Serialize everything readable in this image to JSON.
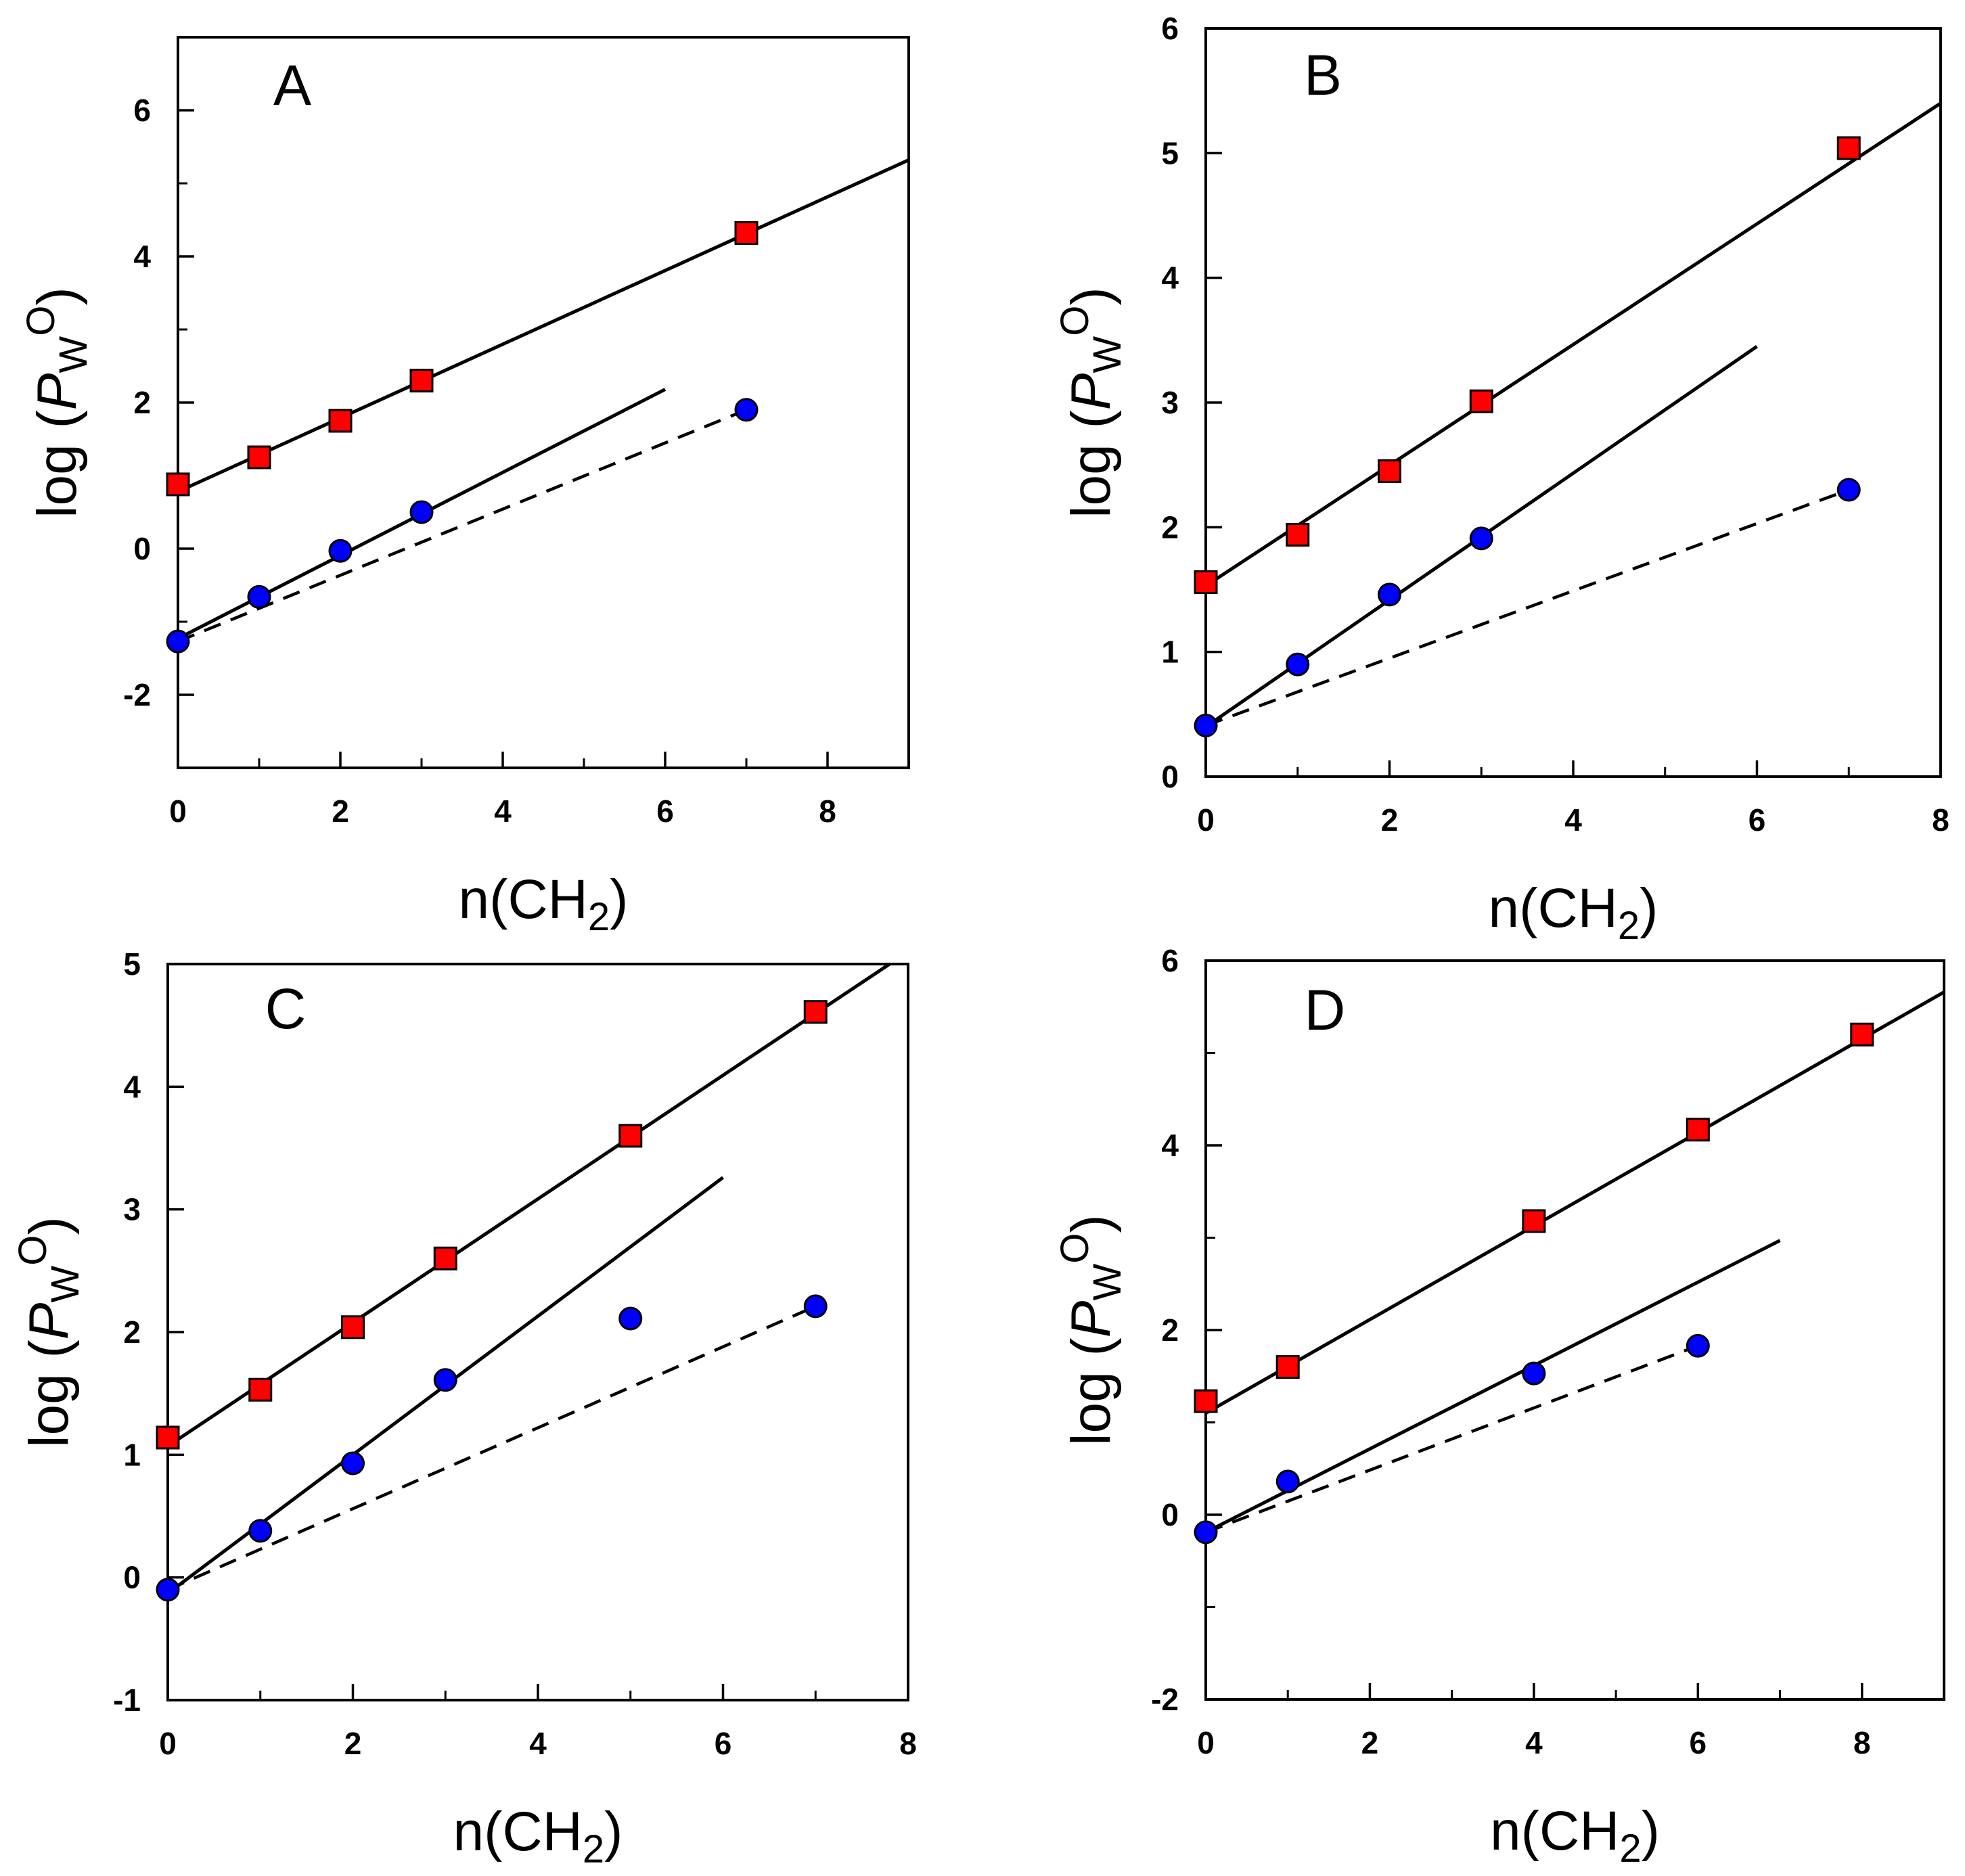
{
  "figure": {
    "xlabel_main": "n(CH",
    "xlabel_sub": "2",
    "xlabel_close": ")",
    "ylabel_prefix": "log (",
    "ylabel_var": "P",
    "ylabel_sub": "W",
    "ylabel_sup": "O",
    "ylabel_close": ")"
  },
  "chart_data": [
    {
      "type": "scatter",
      "panel": "A",
      "title": "A",
      "xlabel": "n(CH2)",
      "ylabel": "log (PWO)",
      "xlim": [
        0,
        9
      ],
      "ylim": [
        -3,
        7
      ],
      "x_major_ticks": [
        0,
        2,
        4,
        6,
        8
      ],
      "x_minor_ticks": [
        1,
        3,
        5,
        7
      ],
      "y_major_ticks": [
        -2,
        0,
        2,
        4,
        6
      ],
      "y_minor_ticks": [
        -1,
        1,
        3,
        5
      ],
      "series": [
        {
          "name": "squares",
          "marker": "square",
          "color": "#ff0000",
          "points": [
            [
              0,
              0.88
            ],
            [
              1,
              1.25
            ],
            [
              2,
              1.75
            ],
            [
              3,
              2.3
            ],
            [
              7,
              4.32
            ]
          ]
        },
        {
          "name": "circles",
          "marker": "circle",
          "color": "#0000ff",
          "points": [
            [
              0,
              -1.27
            ],
            [
              1,
              -0.66
            ],
            [
              2,
              -0.03
            ],
            [
              3,
              0.5
            ],
            [
              7,
              1.9
            ]
          ]
        }
      ],
      "lines": [
        {
          "style": "solid",
          "from": [
            0,
            0.78
          ],
          "to": [
            9,
            5.32
          ]
        },
        {
          "style": "solid",
          "from": [
            0,
            -1.23
          ],
          "to": [
            6,
            2.18
          ]
        },
        {
          "style": "dashed",
          "from": [
            0,
            -1.27
          ],
          "to": [
            7,
            1.9
          ]
        }
      ]
    },
    {
      "type": "scatter",
      "panel": "B",
      "title": "B",
      "xlabel": "n(CH2)",
      "ylabel": "log (PWO)",
      "xlim": [
        0,
        8
      ],
      "ylim": [
        0,
        6
      ],
      "x_major_ticks": [
        0,
        2,
        4,
        6,
        8
      ],
      "x_minor_ticks": [
        1,
        3,
        5,
        7
      ],
      "y_major_ticks": [
        0,
        1,
        2,
        3,
        4,
        5,
        6
      ],
      "y_minor_ticks": [],
      "series": [
        {
          "name": "squares",
          "marker": "square",
          "color": "#ff0000",
          "points": [
            [
              0,
              1.56
            ],
            [
              1,
              1.94
            ],
            [
              2,
              2.45
            ],
            [
              3,
              3.01
            ],
            [
              7,
              5.04
            ]
          ]
        },
        {
          "name": "circles",
          "marker": "circle",
          "color": "#0000ff",
          "points": [
            [
              0,
              0.41
            ],
            [
              1,
              0.9
            ],
            [
              2,
              1.46
            ],
            [
              3,
              1.91
            ],
            [
              7,
              2.3
            ]
          ]
        }
      ],
      "lines": [
        {
          "style": "solid",
          "from": [
            0,
            1.53
          ],
          "to": [
            8,
            5.4
          ]
        },
        {
          "style": "solid",
          "from": [
            0,
            0.4
          ],
          "to": [
            6,
            3.45
          ]
        },
        {
          "style": "dashed",
          "from": [
            0,
            0.41
          ],
          "to": [
            7,
            2.3
          ]
        }
      ]
    },
    {
      "type": "scatter",
      "panel": "C",
      "title": "C",
      "xlabel": "n(CH2)",
      "ylabel": "log (PWO)",
      "xlim": [
        0,
        8
      ],
      "ylim": [
        -1,
        5
      ],
      "x_major_ticks": [
        0,
        2,
        4,
        6,
        8
      ],
      "x_minor_ticks": [
        1,
        3,
        5,
        7
      ],
      "y_major_ticks": [
        -1,
        0,
        1,
        2,
        3,
        4,
        5
      ],
      "y_minor_ticks": [],
      "series": [
        {
          "name": "squares",
          "marker": "square",
          "color": "#ff0000",
          "points": [
            [
              0,
              1.14
            ],
            [
              1,
              1.53
            ],
            [
              2,
              2.04
            ],
            [
              3,
              2.6
            ],
            [
              5,
              3.6
            ],
            [
              7,
              4.61
            ]
          ]
        },
        {
          "name": "circles",
          "marker": "circle",
          "color": "#0000ff",
          "points": [
            [
              0,
              -0.1
            ],
            [
              1,
              0.38
            ],
            [
              2,
              0.93
            ],
            [
              3,
              1.61
            ],
            [
              5,
              2.11
            ],
            [
              7,
              2.21
            ]
          ]
        }
      ],
      "lines": [
        {
          "style": "solid",
          "from": [
            0,
            1.07
          ],
          "to": [
            7.8,
            5.0
          ]
        },
        {
          "style": "solid",
          "from": [
            0,
            -0.13
          ],
          "to": [
            6,
            3.26
          ]
        },
        {
          "style": "dashed",
          "from": [
            0,
            -0.1
          ],
          "to": [
            7,
            2.21
          ]
        }
      ]
    },
    {
      "type": "scatter",
      "panel": "D",
      "title": "D",
      "xlabel": "n(CH2)",
      "ylabel": "log (PWO)",
      "xlim": [
        0,
        9
      ],
      "ylim": [
        -2,
        6
      ],
      "x_major_ticks": [
        0,
        2,
        4,
        6,
        8
      ],
      "x_minor_ticks": [
        1,
        3,
        5,
        7
      ],
      "y_major_ticks": [
        -2,
        0,
        2,
        4,
        6
      ],
      "y_minor_ticks": [
        -1,
        1,
        3,
        5
      ],
      "series": [
        {
          "name": "squares",
          "marker": "square",
          "color": "#ff0000",
          "points": [
            [
              0,
              1.23
            ],
            [
              1,
              1.6
            ],
            [
              4,
              3.18
            ],
            [
              6,
              4.17
            ],
            [
              8,
              5.2
            ]
          ]
        },
        {
          "name": "circles",
          "marker": "circle",
          "color": "#0000ff",
          "points": [
            [
              0,
              -0.19
            ],
            [
              1,
              0.36
            ],
            [
              4,
              1.53
            ],
            [
              6,
              1.83
            ]
          ]
        }
      ],
      "lines": [
        {
          "style": "solid",
          "from": [
            0,
            1.1
          ],
          "to": [
            9,
            5.66
          ]
        },
        {
          "style": "solid",
          "from": [
            0,
            -0.19
          ],
          "to": [
            7,
            2.97
          ]
        },
        {
          "style": "dashed",
          "from": [
            0,
            -0.19
          ],
          "to": [
            6,
            1.83
          ]
        }
      ]
    }
  ]
}
